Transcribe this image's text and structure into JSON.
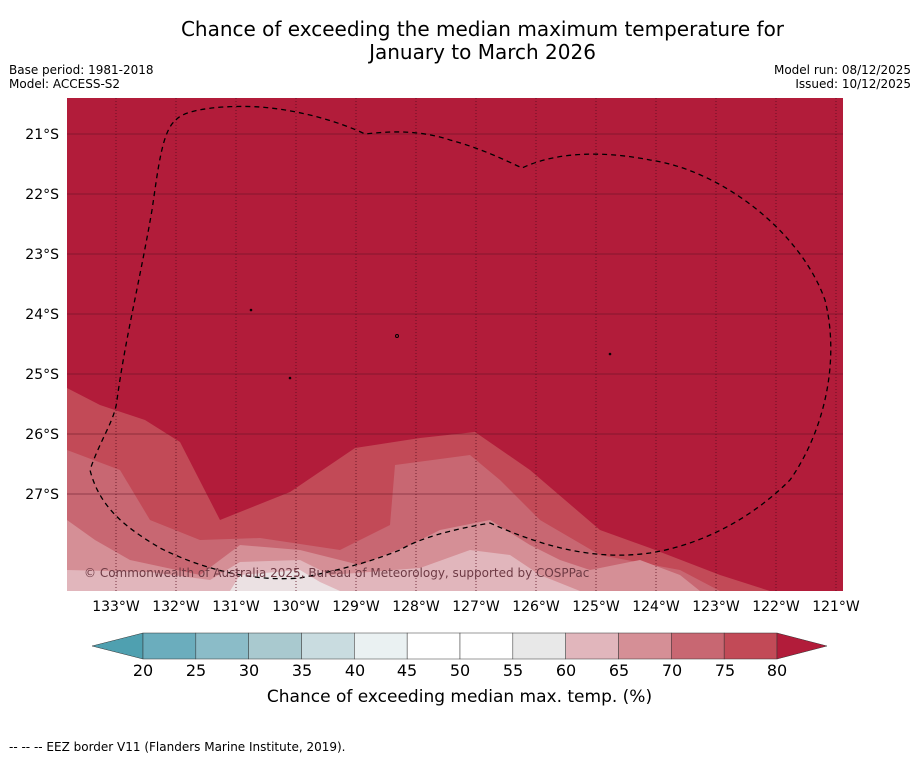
{
  "title_line1": "Chance of exceeding the median maximum temperature for",
  "title_line2": "January to March 2026",
  "base_period": "Base period: 1981-2018",
  "model": "Model: ACCESS-S2",
  "model_run": "Model run: 08/12/2025",
  "issued": "Issued: 10/12/2025",
  "copyright": "© Commonwealth of Australia 2025, Bureau of Meteorology, supported by COSPPac",
  "lat_labels": [
    "21°S",
    "22°S",
    "23°S",
    "24°S",
    "25°S",
    "26°S",
    "27°S"
  ],
  "lon_labels": [
    "133°W",
    "132°W",
    "131°W",
    "130°W",
    "129°W",
    "128°W",
    "127°W",
    "126°W",
    "125°W",
    "124°W",
    "123°W",
    "122°W",
    "121°W"
  ],
  "colorbar": {
    "title": "Chance of exceeding median max. temp. (%)",
    "ticks": [
      "20",
      "25",
      "30",
      "35",
      "40",
      "45",
      "50",
      "55",
      "60",
      "65",
      "70",
      "75",
      "80"
    ],
    "colors": [
      "#6badbd",
      "#8bbcc8",
      "#a9c9cf",
      "#c9dce0",
      "#eaf1f2",
      "#ffffff",
      "#ffffff",
      "#e8e8e8",
      "#e1b6bc",
      "#d58f96",
      "#c86772",
      "#c24a57"
    ],
    "under_color": "#4fa0b0",
    "over_color": "#b21c3a"
  },
  "map_colors": {
    "c80": "#b21c3a",
    "c75": "#c24a57",
    "c70": "#c86772",
    "c65": "#d58f96",
    "c60": "#e1b6bc",
    "c55": "#ebe1e3"
  },
  "footer": "--  --  -- EEZ border V11 (Flanders Marine Institute, 2019)."
}
